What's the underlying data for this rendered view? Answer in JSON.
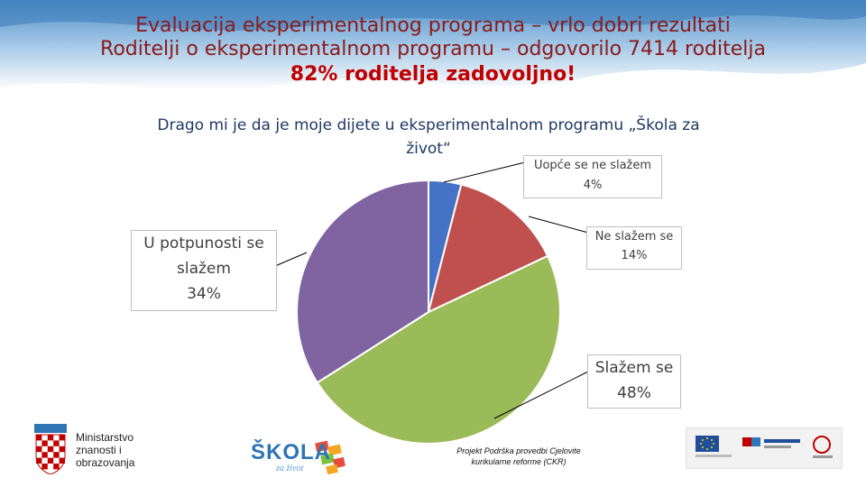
{
  "header": {
    "line1": "Evaluacija eksperimentalnog programa – vrlo dobri rezultati",
    "line2": "Roditelji o eksperimentalnom programu – odgovorilo 7414 roditelja",
    "line3": "82% roditelja zadovoljno!"
  },
  "chart_data": {
    "type": "pie",
    "title_line1": "Drago mi je da je moje dijete u eksperimentalnom programu „Škola za",
    "title_line2": "život“",
    "categories": [
      "Uopće se ne slažem",
      "Ne slažem se",
      "Slažem se",
      "U potpunosti se slažem"
    ],
    "values": [
      4,
      14,
      48,
      34
    ],
    "value_labels": [
      "4%",
      "14%",
      "48%",
      "34%"
    ],
    "colors": [
      "#4472c4",
      "#c0504d",
      "#9bbb59",
      "#8064a2"
    ],
    "legend": "none"
  },
  "labels": {
    "s0_line1": "Uopće se ne slažem",
    "s1_line1": "Ne slažem se",
    "s2_line1": "Slažem se",
    "s3_line1": "U potpunosti se",
    "s3_line2": "slažem"
  },
  "footer": {
    "ministry_line1": "Ministarstvo",
    "ministry_line2": "znanosti i",
    "ministry_line3": "obrazovanja",
    "skola_logo_text": "ŠKOLA",
    "skola_logo_sub": "za život",
    "project_line1": "Projekt Podrška provedbi Cjelovite",
    "project_line2": "kurikularne reforme (CKR)"
  },
  "icons": {
    "coat_of_arms": "croatian-coat-of-arms-icon",
    "eu_logos": "eu-funds-logos-icon"
  }
}
